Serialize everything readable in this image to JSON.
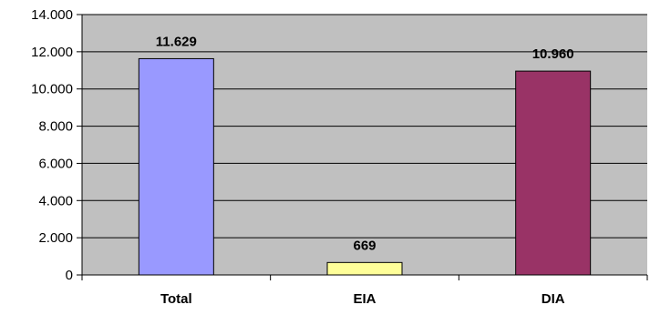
{
  "chart_data": {
    "type": "bar",
    "title": "",
    "xlabel": "",
    "ylabel": "",
    "categories": [
      "Total",
      "EIA",
      "DIA"
    ],
    "values": [
      11629,
      669,
      10960
    ],
    "value_labels": [
      "11.629",
      "669",
      "10.960"
    ],
    "bar_colors": [
      "#9999ff",
      "#ffff99",
      "#993366"
    ],
    "ylim": [
      0,
      14000
    ],
    "yticks": [
      0,
      2000,
      4000,
      6000,
      8000,
      10000,
      12000,
      14000
    ],
    "ytick_labels": [
      "0",
      "2.000",
      "4.000",
      "6.000",
      "8.000",
      "10.000",
      "12.000",
      "14.000"
    ],
    "grid": true,
    "plot_background": "#c0c0c0",
    "legend": "none"
  }
}
